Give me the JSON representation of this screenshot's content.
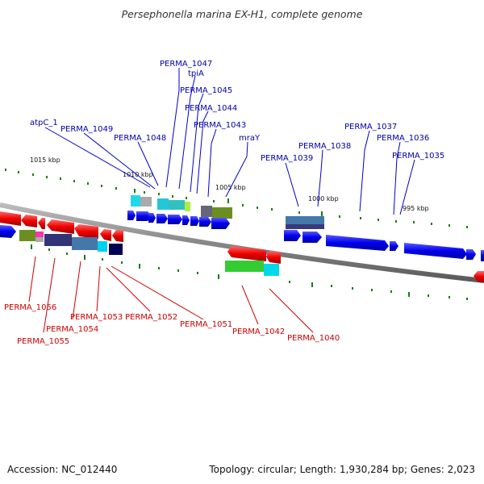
{
  "title": "Persephonella marina EX-H1, complete genome",
  "accession": "Accession: NC_012440",
  "summary": "Topology: circular; Length: 1,930,284 bp; Genes: 2,023",
  "colors": {
    "forward": "#0000ee",
    "reverse": "#ee0000",
    "backbone": "#777777",
    "tick": "#1a7a1a",
    "label_forward": "#0000aa",
    "label_reverse": "#cc0000"
  },
  "ticks": [
    "1015 kbp",
    "1010 kbp",
    "1005 kbp",
    "1000 kbp",
    "995 kbp"
  ],
  "forward_labels": [
    "PERMA_1047",
    "tpiA",
    "PERMA_1045",
    "PERMA_1044",
    "atpC_1",
    "PERMA_1043",
    "PERMA_1049",
    "PERMA_1048",
    "mraY",
    "PERMA_1037",
    "PERMA_1036",
    "PERMA_1038",
    "PERMA_1039",
    "PERMA_1035"
  ],
  "reverse_labels": [
    "PERMA_1056",
    "PERMA_1053",
    "PERMA_1052",
    "PERMA_1054",
    "PERMA_1051",
    "PERMA_1055",
    "PERMA_1042",
    "PERMA_1040"
  ]
}
